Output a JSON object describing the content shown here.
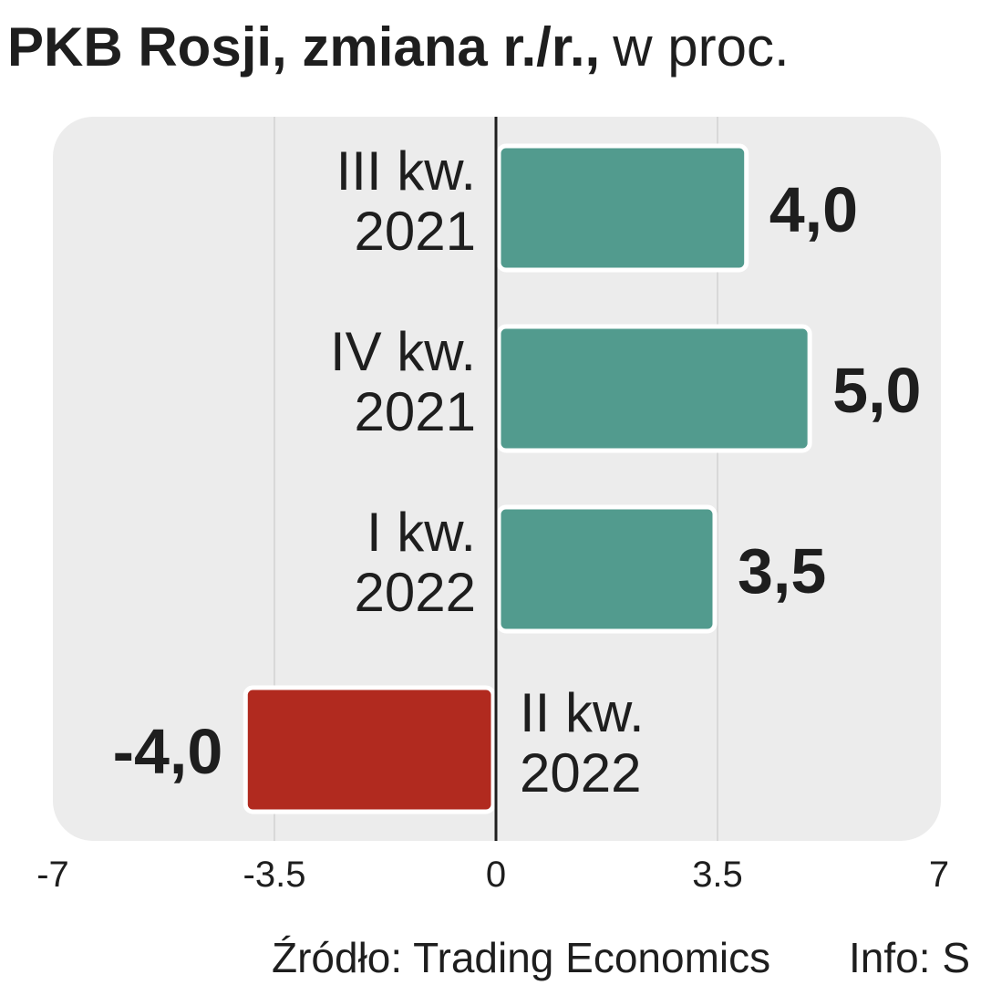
{
  "title": {
    "bold": "PKB Rosji, zmiana r./r.,",
    "light": "w proc."
  },
  "colors": {
    "positive": "#529b8e",
    "negative": "#b12a1f",
    "panel": "#ececec",
    "axis": "#1e1e1e"
  },
  "chart_data": {
    "type": "bar",
    "orientation": "horizontal",
    "categories": [
      [
        "III kw.",
        "2021"
      ],
      [
        "IV kw.",
        "2021"
      ],
      [
        "I kw.",
        "2022"
      ],
      [
        "II kw.",
        "2022"
      ]
    ],
    "values": [
      4.0,
      5.0,
      3.5,
      -4.0
    ],
    "value_labels": [
      "4,0",
      "5,0",
      "3,5",
      "-4,0"
    ],
    "xlim": [
      -7,
      7
    ],
    "xticks": [
      -7,
      -3.5,
      0,
      3.5,
      7
    ],
    "xtick_labels": [
      "-7",
      "-3.5",
      "0",
      "3.5",
      "7"
    ],
    "grid": true
  },
  "footer": {
    "source": "Źródło: Trading Economics",
    "info": "Info: S"
  }
}
